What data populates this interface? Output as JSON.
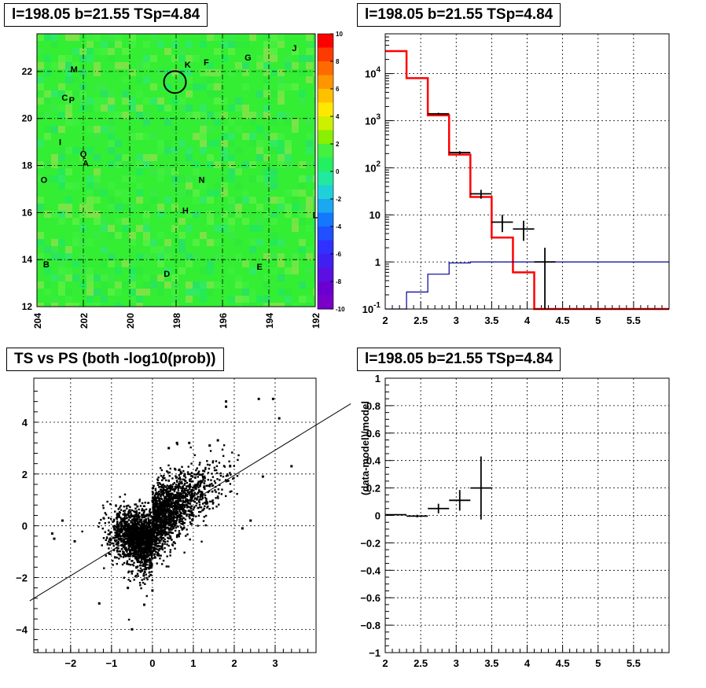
{
  "panels": {
    "map_title": "l=198.05 b=21.55 TSp=4.84",
    "spectrum_title": "l=198.05 b=21.55 TSp=4.84",
    "scatter_title": "TS vs PS (both -log10(prob))",
    "residual_title": "l=198.05 b=21.55 TSp=4.84"
  },
  "colors": {
    "map_bg": "#33ee33",
    "model": "#ff0000",
    "background": "#000099",
    "data": "#000000"
  },
  "chart_data": [
    {
      "type": "heatmap",
      "title": "l=198.05 b=21.55 TSp=4.84",
      "xlim": [
        204,
        192
      ],
      "ylim": [
        12,
        23.6
      ],
      "xticks": [
        "204",
        "202",
        "200",
        "198",
        "196",
        "194",
        "192"
      ],
      "yticks": [
        "12",
        "14",
        "16",
        "18",
        "20",
        "22"
      ],
      "zlim": [
        -10,
        10
      ],
      "colorbar_ticks": [
        "10",
        "8",
        "6",
        "4",
        "2",
        "0",
        "-2",
        "-4",
        "-6",
        "-8",
        "-10"
      ],
      "marker": {
        "l": 198.05,
        "b": 21.55
      },
      "sources": [
        {
          "name": "J",
          "l": 192.9,
          "b": 23.0
        },
        {
          "name": "K",
          "l": 197.5,
          "b": 22.3
        },
        {
          "name": "F",
          "l": 196.7,
          "b": 22.4
        },
        {
          "name": "G",
          "l": 194.9,
          "b": 22.6
        },
        {
          "name": "M",
          "l": 202.4,
          "b": 22.1
        },
        {
          "name": "C",
          "l": 202.8,
          "b": 20.9
        },
        {
          "name": "P",
          "l": 202.5,
          "b": 20.8
        },
        {
          "name": "I",
          "l": 203.0,
          "b": 19.0
        },
        {
          "name": "Q",
          "l": 202.0,
          "b": 18.5
        },
        {
          "name": "A",
          "l": 201.9,
          "b": 18.1
        },
        {
          "name": "O",
          "l": 203.7,
          "b": 17.4
        },
        {
          "name": "N",
          "l": 196.9,
          "b": 17.4
        },
        {
          "name": "H",
          "l": 197.6,
          "b": 16.1
        },
        {
          "name": "L",
          "l": 192.0,
          "b": 15.9
        },
        {
          "name": "B",
          "l": 203.6,
          "b": 13.8
        },
        {
          "name": "E",
          "l": 194.4,
          "b": 13.7
        },
        {
          "name": "D",
          "l": 198.4,
          "b": 13.4
        }
      ]
    },
    {
      "type": "line",
      "title": "l=198.05 b=21.55 TSp=4.84",
      "xlim": [
        2,
        6
      ],
      "ylim": [
        0.1,
        70000
      ],
      "yscale": "log",
      "xticks": [
        "2",
        "2.5",
        "3",
        "3.5",
        "4",
        "4.5",
        "5",
        "5.5"
      ],
      "yticks": [
        "10^-1",
        "1",
        "10",
        "10^2",
        "10^3",
        "10^4"
      ],
      "grid": true,
      "series": [
        {
          "role": "model",
          "edges": [
            2,
            2.3,
            2.6,
            2.9,
            3.2,
            3.5,
            3.8,
            4.1,
            4.4,
            6.0
          ],
          "values": [
            30000,
            8000,
            1300,
            190,
            24,
            3.3,
            0.6,
            0.1,
            0.1
          ]
        },
        {
          "role": "background",
          "edges": [
            2,
            2.3,
            2.6,
            2.9,
            3.2,
            3.5,
            3.8,
            4.1,
            4.4,
            6.0
          ],
          "values": [
            0.1,
            0.23,
            0.55,
            0.95,
            1.0,
            1.0,
            1.0,
            1.0,
            1.0
          ]
        },
        {
          "role": "data",
          "x": [
            2.75,
            3.05,
            3.35,
            3.65,
            3.95,
            4.25
          ],
          "y": [
            1400,
            210,
            28,
            7,
            5,
            1.0
          ],
          "xerr": [
            0.15,
            0.15,
            0.15,
            0.15,
            0.15,
            0.15
          ],
          "ylo": [
            1330,
            195,
            22,
            4.3,
            2.8,
            0.1
          ],
          "yhi": [
            1470,
            225,
            34,
            10,
            7.5,
            2.0
          ]
        }
      ]
    },
    {
      "type": "scatter",
      "title": "TS vs PS (both -log10(prob))",
      "xlim": [
        -2.9,
        4.0
      ],
      "ylim": [
        -4.9,
        5.7
      ],
      "xticks": [
        "-2",
        "-1",
        "0",
        "1",
        "2",
        "3"
      ],
      "yticks": [
        "-4",
        "-2",
        "0",
        "2",
        "4"
      ],
      "grid": true,
      "fit_line": {
        "slope": 0.9,
        "intercept": 0.35
      },
      "outliers": [
        [
          1.8,
          4.8
        ],
        [
          2.6,
          4.9
        ],
        [
          2.95,
          4.9
        ],
        [
          1.8,
          4.6
        ],
        [
          3.1,
          4.15
        ],
        [
          3.4,
          2.3
        ],
        [
          2.7,
          1.9
        ],
        [
          1.9,
          2.3
        ],
        [
          1.6,
          3.3
        ],
        [
          1.4,
          3.1
        ],
        [
          -0.5,
          -4.0
        ],
        [
          -1.3,
          -3.0
        ],
        [
          -0.2,
          -3.05
        ],
        [
          -2.45,
          -0.3
        ],
        [
          -2.4,
          -0.5
        ],
        [
          -2.2,
          0.2
        ],
        [
          -1.9,
          -0.6
        ],
        [
          0.0,
          -2.5
        ],
        [
          -0.6,
          -2.4
        ],
        [
          2.2,
          -0.1
        ],
        [
          2.4,
          0.2
        ],
        [
          0.6,
          3.2
        ],
        [
          0.9,
          3.2
        ],
        [
          0.4,
          3.0
        ]
      ]
    },
    {
      "type": "scatter",
      "title": "l=198.05 b=21.55 TSp=4.84",
      "ylabel": "(data-model)/model",
      "xlim": [
        2,
        6
      ],
      "ylim": [
        -1,
        1
      ],
      "xticks": [
        "2",
        "2.5",
        "3",
        "3.5",
        "4",
        "4.5",
        "5",
        "5.5"
      ],
      "yticks": [
        "-1",
        "-0.8",
        "-0.6",
        "-0.4",
        "-0.2",
        "0",
        "0.2",
        "0.4",
        "0.6",
        "0.8",
        "1"
      ],
      "grid": true,
      "x": [
        2.15,
        2.45,
        2.75,
        3.05,
        3.35
      ],
      "y": [
        0.005,
        -0.005,
        0.05,
        0.11,
        0.2
      ],
      "xerr": [
        0.15,
        0.15,
        0.15,
        0.15,
        0.15
      ],
      "yerr": [
        0.005,
        0.01,
        0.035,
        0.075,
        0.23
      ]
    }
  ]
}
